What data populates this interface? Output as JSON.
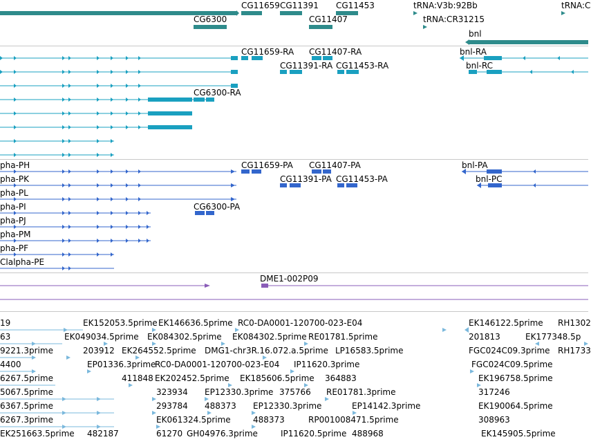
{
  "colors": {
    "gene": "#2e8b8b",
    "transcript": "#1aa0c0",
    "protein": "#3366cc",
    "est": "#8a5cb8",
    "probe": "#7ab8dc"
  },
  "gene_track": {
    "labels": [
      "CG11659",
      "CG11391",
      "CG11453",
      "tRNA:V3b:92Bb",
      "tRNA:C",
      "CG6300",
      "CG11407",
      "tRNA:CR31215",
      "bnl"
    ]
  },
  "transcript_track": {
    "labels": [
      "CG11659-RA",
      "CG11407-RA",
      "bnl-RA",
      "CG11391-RA",
      "CG11453-RA",
      "bnl-RC",
      "CG6300-RA"
    ]
  },
  "protein_track": {
    "labels": [
      "pha-PH",
      "CG11659-PA",
      "CG11407-PA",
      "bnl-PA",
      "pha-PK",
      "CG11391-PA",
      "CG11453-PA",
      "bnl-PC",
      "pha-PL",
      "pha-PI",
      "CG6300-PA",
      "pha-PJ",
      "pha-PM",
      "pha-PF",
      "Clalpha-PE"
    ]
  },
  "est_track": {
    "labels": [
      "DME1-002P09"
    ]
  },
  "probe_track": {
    "labels": [
      "19",
      "EK152053.5prime",
      "EK146636.5prime",
      "RC0-DA0001-120700-023-E04",
      "EK146122.5prime",
      "RH1302",
      "63",
      "EK049034.5prime",
      "EK084302.5prime",
      "EK084302.5prime",
      "RE01781.5prime",
      "201813",
      "EK177348.5p",
      "9221.3prime",
      "203912",
      "EK264552.5prime",
      "DMG1-chr3R.16.072.a.5prime",
      "LP16583.5prime",
      "FGC024C09.3prime",
      "RH1733",
      "4400",
      "EP01336.3prime",
      "RC0-DA0001-120700-023-E04",
      "IP11620.3prime",
      "FGC024C09.5prime",
      "6267.5prime",
      "411848",
      "EK202452.5prime",
      "EK185606.5prime",
      "364883",
      "EK196758.5prime",
      "5067.5prime",
      "323934",
      "EP12330.3prime",
      "375766",
      "RE01781.3prime",
      "317246",
      "6367.5prime",
      "293784",
      "488373",
      "EP12330.3prime",
      "EP14142.3prime",
      "EK190064.5prime",
      "6267.3prime",
      "EK061324.5prime",
      "488373",
      "RP001008471.5prime",
      "308963",
      "EK251663.5prime",
      "482187",
      "61270",
      "GH04976.3prime",
      "IP11620.5prime",
      "488968",
      "EK145905.5prime"
    ]
  }
}
